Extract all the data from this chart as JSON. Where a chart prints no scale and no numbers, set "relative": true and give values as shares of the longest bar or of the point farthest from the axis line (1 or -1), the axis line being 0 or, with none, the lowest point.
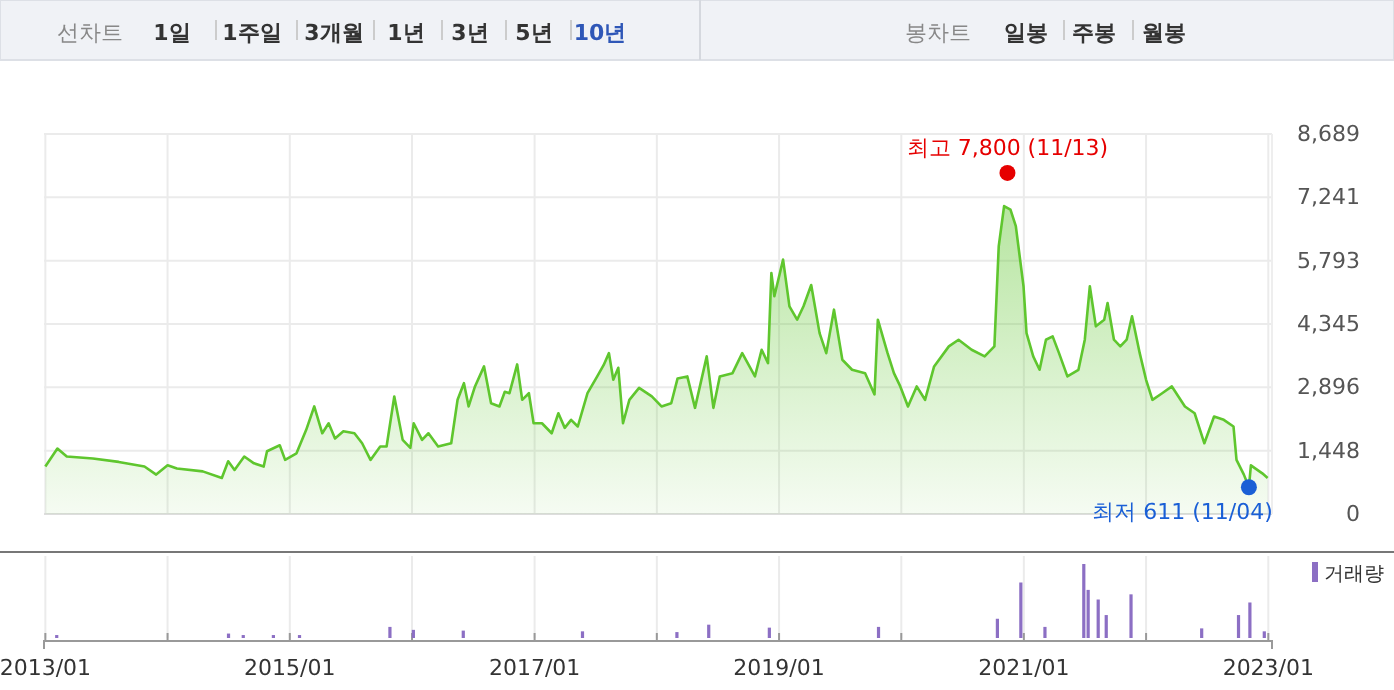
{
  "chart_data": [
    {
      "type": "area",
      "annotations": [
        "선차트",
        "1일",
        "1주일",
        "3개월",
        "1년",
        "3년",
        "5년",
        "10년",
        "봉차트",
        "일봉",
        "주봉",
        "월봉",
        {
          "text": "최고 7,800 (11/13)",
          "x": "2020-11-13",
          "y": 7800
        },
        {
          "text": "최저 611 (11/04)",
          "x": "2022-11-04",
          "y": 611
        }
      ],
      "x": [
        "2013-01-01",
        "2013-02-06",
        "2013-03-06",
        "2013-05-23",
        "2013-08-08",
        "2013-10-24",
        "2013-11-28",
        "2014-01-01",
        "2014-01-29",
        "2014-04-16",
        "2014-06-12",
        "2014-07-01",
        "2014-07-20",
        "2014-08-18",
        "2014-09-16",
        "2014-10-15",
        "2014-10-25",
        "2014-12-02",
        "2014-12-18",
        "2015-01-21",
        "2015-02-19",
        "2015-03-15",
        "2015-04-08",
        "2015-04-27",
        "2015-05-16",
        "2015-06-10",
        "2015-07-13",
        "2015-08-05",
        "2015-08-30",
        "2015-09-28",
        "2015-10-17",
        "2015-11-09",
        "2015-12-04",
        "2015-12-27",
        "2016-01-06",
        "2016-01-31",
        "2016-02-19",
        "2016-03-19",
        "2016-04-27",
        "2016-05-16",
        "2016-06-04",
        "2016-06-18",
        "2016-07-07",
        "2016-08-03",
        "2016-08-24",
        "2016-09-18",
        "2016-10-04",
        "2016-10-18",
        "2016-11-10",
        "2016-11-25",
        "2016-12-15",
        "2016-12-29",
        "2017-01-23",
        "2017-02-21",
        "2017-03-13",
        "2017-04-01",
        "2017-04-20",
        "2017-05-10",
        "2017-06-08",
        "2017-07-07",
        "2017-07-26",
        "2017-08-11",
        "2017-08-24",
        "2017-09-08",
        "2017-09-22",
        "2017-10-11",
        "2017-11-09",
        "2017-12-17",
        "2018-01-15",
        "2018-02-13",
        "2018-03-04",
        "2018-04-02",
        "2018-04-25",
        "2018-05-30",
        "2018-06-19",
        "2018-07-08",
        "2018-08-15",
        "2018-09-13",
        "2018-10-21",
        "2018-11-10",
        "2018-11-29",
        "2018-12-09",
        "2018-12-18",
        "2019-01-13",
        "2019-02-01",
        "2019-02-24",
        "2019-03-15",
        "2019-04-07",
        "2019-05-02",
        "2019-05-22",
        "2019-06-14",
        "2019-07-09",
        "2019-08-07",
        "2019-09-15",
        "2019-10-13",
        "2019-10-23",
        "2019-11-21",
        "2019-12-10",
        "2019-12-29",
        "2020-01-21",
        "2020-02-16",
        "2020-03-12",
        "2020-04-08",
        "2020-05-22",
        "2020-06-20",
        "2020-07-29",
        "2020-09-06",
        "2020-10-05",
        "2020-10-18",
        "2020-11-03",
        "2020-11-22",
        "2020-12-08",
        "2020-12-31",
        "2021-01-09",
        "2021-01-29",
        "2021-02-17",
        "2021-03-08",
        "2021-03-28",
        "2021-04-16",
        "2021-05-11",
        "2021-06-13",
        "2021-07-02",
        "2021-07-17",
        "2021-08-04",
        "2021-08-29",
        "2021-09-08",
        "2021-09-27",
        "2021-10-16",
        "2021-11-04",
        "2021-11-20",
        "2021-12-13",
        "2022-01-01",
        "2022-01-20",
        "2022-02-18",
        "2022-03-19",
        "2022-04-27",
        "2022-05-26",
        "2022-06-24",
        "2022-07-23",
        "2022-08-21",
        "2022-09-19",
        "2022-09-28",
        "2022-10-20",
        "2022-11-04",
        "2022-11-10",
        "2022-12-14",
        "2022-12-30"
      ],
      "series": [
        {
          "color": "#5fc62e",
          "values": [
            1085,
            1497,
            1314,
            1268,
            1191,
            1085,
            902,
            1113,
            1040,
            975,
            824,
            1205,
            1008,
            1314,
            1159,
            1085,
            1434,
            1571,
            1237,
            1388,
            1924,
            2459,
            1846,
            2075,
            1727,
            1892,
            1846,
            1617,
            1237,
            1543,
            1543,
            2688,
            1695,
            1511,
            2075,
            1695,
            1846,
            1543,
            1617,
            2611,
            2991,
            2459,
            2917,
            3375,
            2533,
            2459,
            2794,
            2762,
            3421,
            2611,
            2762,
            2075,
            2075,
            1846,
            2304,
            1969,
            2153,
            2001,
            2762,
            3146,
            3403,
            3678,
            3069,
            3343,
            2075,
            2611,
            2885,
            2688,
            2459,
            2533,
            3100,
            3146,
            2427,
            3604,
            2427,
            3146,
            3220,
            3678,
            3146,
            3756,
            3449,
            5510,
            4978,
            5817,
            4749,
            4443,
            4749,
            5235,
            4136,
            3678,
            4672,
            3527,
            3298,
            3220,
            2734,
            4443,
            3678,
            3220,
            2917,
            2459,
            2917,
            2611,
            3375,
            3833,
            3985,
            3756,
            3604,
            3833,
            6123,
            7039,
            6962,
            6581,
            5207,
            4136,
            3604,
            3298,
            3985,
            4062,
            3678,
            3146,
            3298,
            3985,
            5207,
            4291,
            4443,
            4823,
            3985,
            3833,
            3985,
            4520,
            3678,
            3069,
            2611,
            2762,
            2917,
            2459,
            2304,
            1617,
            2230,
            2153,
            2001,
            1237,
            900,
            611,
            1113,
            930,
            824
          ]
        }
      ],
      "xlim": [
        "2012-12-28",
        "2023-01-12"
      ],
      "xticks": [
        {
          "value": "2013-01-01",
          "label": null
        },
        {
          "value": "2014-01-01",
          "label": null
        },
        {
          "value": "2015-01-01",
          "label": null
        },
        {
          "value": "2016-01-01",
          "label": null
        },
        {
          "value": "2017-01-01",
          "label": null
        },
        {
          "value": "2018-01-01",
          "label": null
        },
        {
          "value": "2019-01-01",
          "label": null
        },
        {
          "value": "2020-01-01",
          "label": null
        },
        {
          "value": "2021-01-01",
          "label": null
        },
        {
          "value": "2022-01-01",
          "label": null
        },
        {
          "value": "2023-01-01",
          "label": null
        }
      ],
      "ylim": [
        0,
        8689
      ],
      "yticks": [
        0,
        {
          "value": 1448,
          "label": "1,448"
        },
        {
          "value": 2896,
          "label": "2,896"
        },
        {
          "value": 4345,
          "label": "4,345"
        },
        {
          "value": 5793,
          "label": "5,793"
        },
        {
          "value": 7241,
          "label": "7,241"
        },
        {
          "value": 8689,
          "label": "8,689"
        }
      ],
      "grid": true,
      "tick_labels": "y"
    },
    {
      "type": "bar",
      "relative": true,
      "legend": "top right",
      "tick_labels": "x",
      "x": [
        "2013-02-04",
        "2014-07-02",
        "2014-08-15",
        "2014-11-13",
        "2015-01-30",
        "2015-10-27",
        "2016-01-05",
        "2016-06-02",
        "2017-05-24",
        "2018-03-02",
        "2018-06-05",
        "2018-12-03",
        "2019-10-25",
        "2020-10-14",
        "2020-12-23",
        "2021-03-05",
        "2021-06-29",
        "2021-07-12",
        "2021-08-11",
        "2021-09-04",
        "2021-11-17",
        "2022-06-16",
        "2022-10-04",
        "2022-11-07",
        "2022-12-20"
      ],
      "series": [
        {
          "name": "거래량",
          "color": "#8c6fc4",
          "values": [
            0.04,
            0.06,
            0.04,
            0.04,
            0.04,
            0.15,
            0.11,
            0.1,
            0.09,
            0.08,
            0.18,
            0.14,
            0.15,
            0.26,
            0.75,
            0.15,
            1,
            0.65,
            0.52,
            0.31,
            0.59,
            0.13,
            0.31,
            0.48,
            0.09
          ]
        }
      ],
      "xlim": [
        "2012-12-28",
        "2023-01-12"
      ],
      "xticks": [
        {
          "value": "2013-01-01",
          "label": "2013/01"
        },
        {
          "value": "2014-01-01",
          "label": null
        },
        {
          "value": "2015-01-01",
          "label": "2015/01"
        },
        {
          "value": "2016-01-01",
          "label": null
        },
        {
          "value": "2017-01-01",
          "label": "2017/01"
        },
        {
          "value": "2018-01-01",
          "label": null
        },
        {
          "value": "2019-01-01",
          "label": "2019/01"
        },
        {
          "value": "2020-01-01",
          "label": null
        },
        {
          "value": "2021-01-01",
          "label": "2021/01"
        },
        {
          "value": "2022-01-01",
          "label": null
        },
        {
          "value": "2023-01-01",
          "label": "2023/01"
        }
      ],
      "grid": "x"
    }
  ]
}
